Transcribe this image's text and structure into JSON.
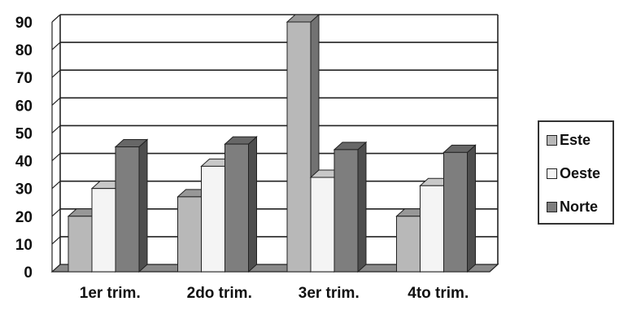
{
  "chart_data": {
    "type": "bar",
    "categories": [
      "1er trim.",
      "2do trim.",
      "3er trim.",
      "4to trim."
    ],
    "series": [
      {
        "name": "Este",
        "values": [
          20,
          27,
          90,
          20
        ],
        "color": "#b8b8b8"
      },
      {
        "name": "Oeste",
        "values": [
          30,
          38,
          34,
          31
        ],
        "color": "#f4f4f4"
      },
      {
        "name": "Norte",
        "values": [
          45,
          46,
          44,
          43
        ],
        "color": "#7e7e7e"
      }
    ],
    "yticks": [
      "0",
      "10",
      "20",
      "30",
      "40",
      "50",
      "60",
      "70",
      "80",
      "90"
    ],
    "ylim": [
      0,
      90
    ],
    "grid": true,
    "legend_position": "right",
    "style": "3d-clustered-column"
  }
}
